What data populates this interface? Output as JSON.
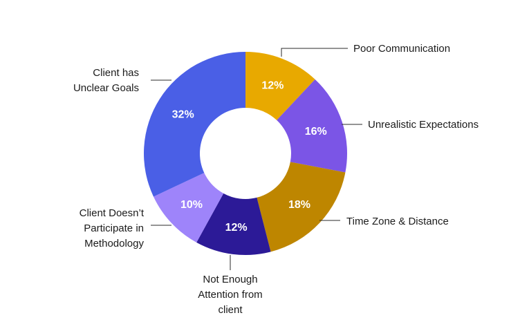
{
  "chart_data": {
    "type": "pie",
    "variant": "donut",
    "title": "",
    "start_angle_deg": 0,
    "direction": "clockwise",
    "slices": [
      {
        "label": [
          "Poor Communication"
        ],
        "value": 12,
        "value_label": "12%",
        "color": "#E8A900"
      },
      {
        "label": [
          "Unrealistic Expectations"
        ],
        "value": 16,
        "value_label": "16%",
        "color": "#7B55E6"
      },
      {
        "label": [
          "Time Zone & Distance"
        ],
        "value": 18,
        "value_label": "18%",
        "color": "#BE8600"
      },
      {
        "label": [
          "Not Enough",
          "Attention from",
          "client"
        ],
        "value": 12,
        "value_label": "12%",
        "color": "#2C1A97"
      },
      {
        "label": [
          "Client Doesn’t",
          "Participate in",
          "Methodology"
        ],
        "value": 10,
        "value_label": "10%",
        "color": "#9E84FA"
      },
      {
        "label": [
          "Client has",
          "Unclear Goals"
        ],
        "value": 32,
        "value_label": "32%",
        "color": "#4A5FE6"
      }
    ]
  }
}
